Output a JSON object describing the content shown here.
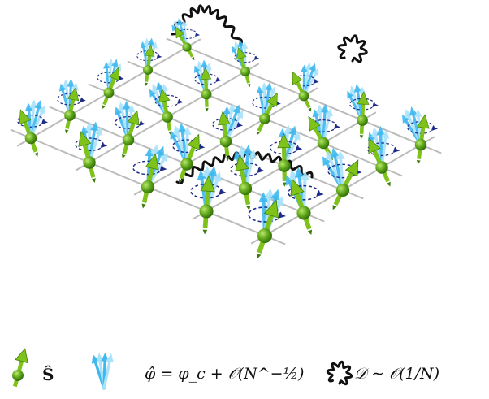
{
  "legend": {
    "spin_label": "Ŝ",
    "field_label": "φ̂ = φ_c + 𝒪(N^−½)",
    "interaction_label": "𝒟 ∼ 𝒪(1/N)"
  },
  "colors": {
    "spin_green": "#7ec21a",
    "spin_dark": "#3f7d0d",
    "field_blue": "#3fb8f0",
    "field_light": "#a9e2fb",
    "lattice": "#bbbbbb",
    "circle": "#1f2b8a",
    "wavy": "#111111"
  },
  "icons": {
    "spin": "green-spin-arrow-icon",
    "field": "blue-fan-arrow-icon",
    "interaction": "wavy-loop-icon"
  }
}
